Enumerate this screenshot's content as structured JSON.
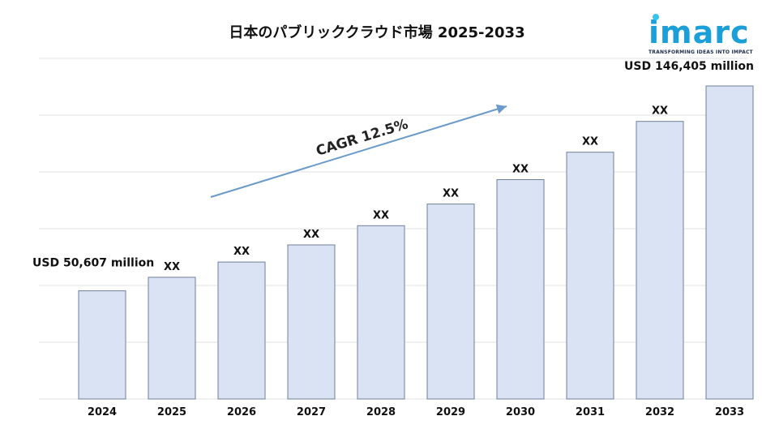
{
  "chart_data": {
    "type": "bar",
    "title": "日本のパブリッククラウド市場 2025-2033",
    "categories": [
      "2024",
      "2025",
      "2026",
      "2027",
      "2028",
      "2029",
      "2030",
      "2031",
      "2032",
      "2033"
    ],
    "values": [
      50607,
      56933,
      64050,
      72056,
      81063,
      91196,
      102595,
      115420,
      129848,
      146405
    ],
    "data_labels": [
      "USD 50,607 million",
      "XX",
      "XX",
      "XX",
      "XX",
      "XX",
      "XX",
      "XX",
      "XX",
      "USD 146,405 million"
    ],
    "annotation": "CAGR 12.5%",
    "ylim": [
      0,
      160000
    ],
    "grid": true,
    "bar_color": "#d9e3f4",
    "bar_edge_color": "#6e7f9a",
    "arrow_color": "#6a9ac9"
  },
  "brand": {
    "name": "imarc",
    "tagline": "TRANSFORMING IDEAS INTO IMPACT",
    "color": "#1a9fd8"
  }
}
